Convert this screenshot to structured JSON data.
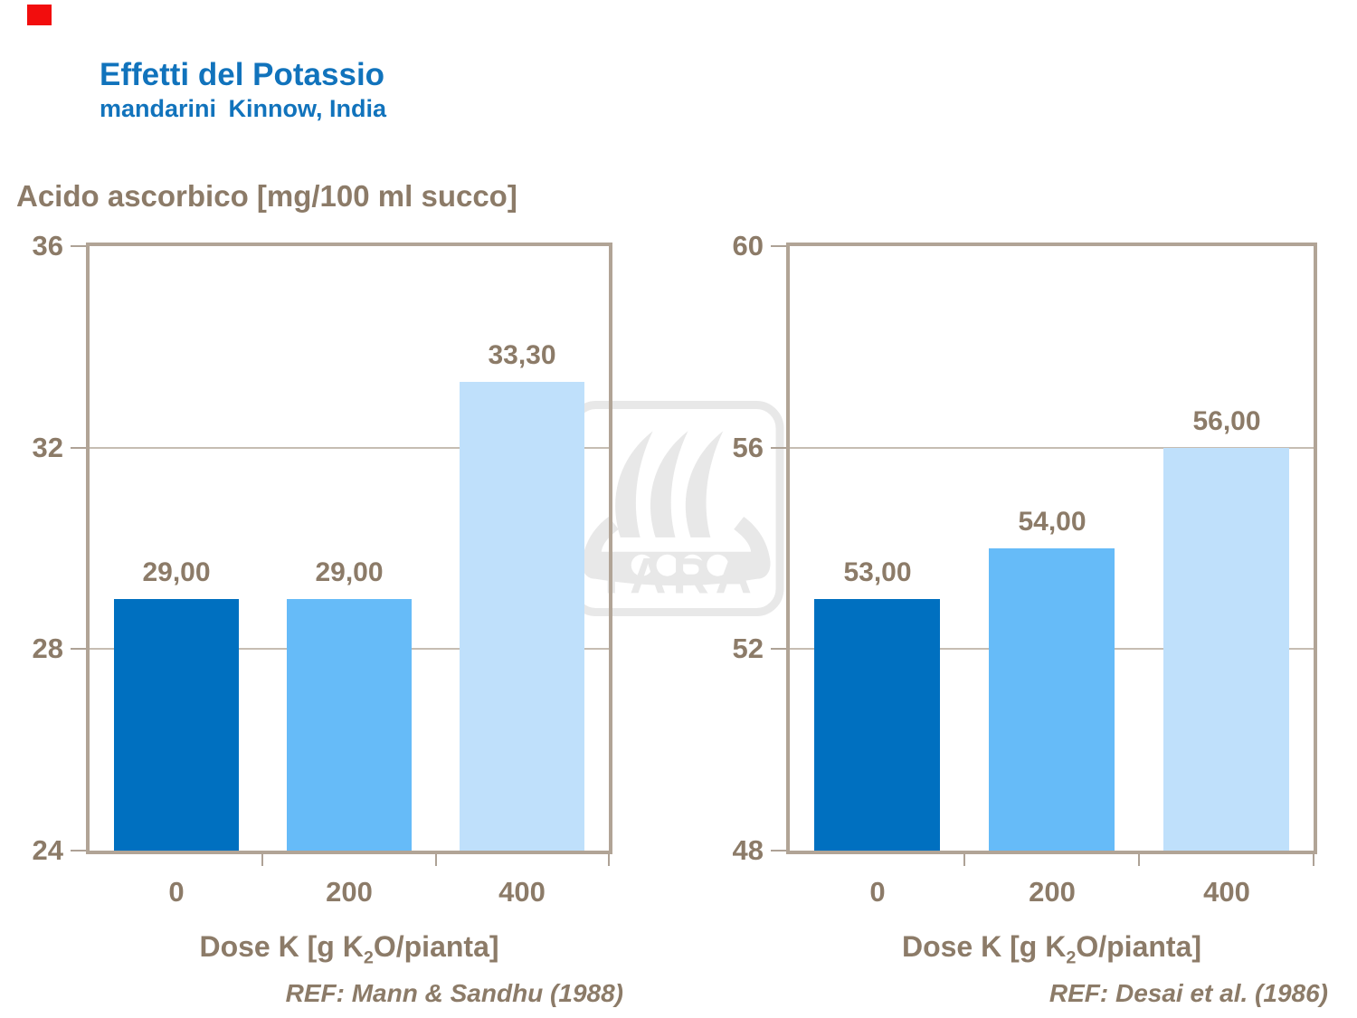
{
  "slide": {
    "title": "Effetti del Potassio",
    "subtitle": "mandarini Kinnow, India",
    "heading": "Acido ascorbico [mg/100 ml succo]",
    "marker_color": "#F20D0D"
  },
  "watermark": {
    "label": "YARA",
    "color": "#E8E8E8"
  },
  "colors": {
    "title_blue": "#1173BC",
    "text_brown": "#8C7B68",
    "frame_tan": "#B1A496",
    "gridline": "#C6BDB2",
    "bar_colors": [
      "#0070C0",
      "#66BBF8",
      "#BFE0FB"
    ]
  },
  "xaxis_label": {
    "pre": "Dose K [g K",
    "sub": "2",
    "post": "O/pianta]"
  },
  "chart_data": [
    {
      "type": "bar",
      "title": "Acido ascorbico [mg/100 ml succo]",
      "categories": [
        "0",
        "200",
        "400"
      ],
      "values": [
        29.0,
        29.0,
        33.3
      ],
      "value_labels": [
        "29,00",
        "29,00",
        "33,30"
      ],
      "ylim": [
        24,
        36
      ],
      "yticks": [
        24,
        28,
        32,
        36
      ],
      "ytick_labels": [
        "24",
        "28",
        "32",
        "36"
      ],
      "xlabel": "Dose K [g K2O/pianta]",
      "ylabel": "Acido ascorbico [mg/100 ml succo]",
      "grid": true,
      "legend": "none",
      "ref": "REF: Mann & Sandhu (1988)"
    },
    {
      "type": "bar",
      "title": "Acido ascorbico [mg/100 ml succo]",
      "categories": [
        "0",
        "200",
        "400"
      ],
      "values": [
        53.0,
        54.0,
        56.0
      ],
      "value_labels": [
        "53,00",
        "54,00",
        "56,00"
      ],
      "ylim": [
        48,
        60
      ],
      "yticks": [
        48,
        52,
        56,
        60
      ],
      "ytick_labels": [
        "48",
        "52",
        "56",
        "60"
      ],
      "xlabel": "Dose K [g K2O/pianta]",
      "ylabel": "Acido ascorbico [mg/100 ml succo]",
      "grid": true,
      "legend": "none",
      "ref": "REF: Desai et al. (1986)"
    }
  ]
}
